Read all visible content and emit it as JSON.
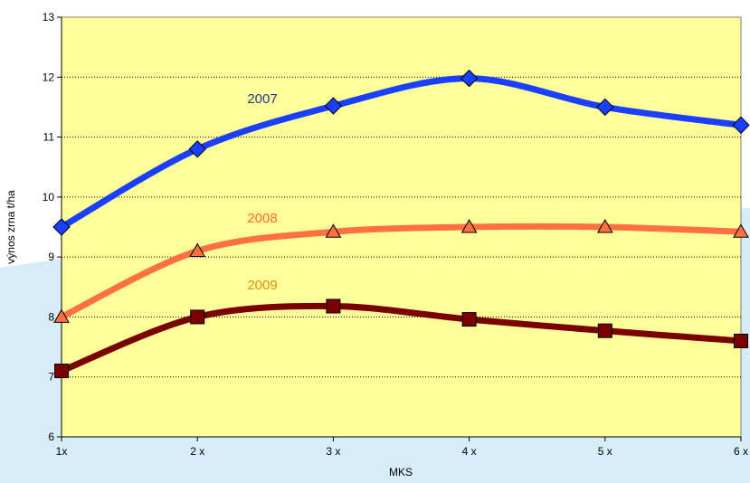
{
  "chart_data": {
    "type": "line",
    "categories": [
      "1x",
      "2 x",
      "3 x",
      "4 x",
      "5 x",
      "6 x"
    ],
    "xlabel": "MKS",
    "ylabel": "výnos zrna t/ha",
    "ylim": [
      6,
      13
    ],
    "yticks": [
      "6",
      "7",
      "8",
      "9",
      "10",
      "11",
      "12",
      "13"
    ],
    "grid": true,
    "series": [
      {
        "name": "2007",
        "values": [
          9.5,
          10.8,
          11.52,
          11.98,
          11.5,
          11.2
        ],
        "color": "#1a3fff",
        "label_color": "#1f3a8a",
        "marker": "diamond"
      },
      {
        "name": "2008",
        "values": [
          8.0,
          9.1,
          9.42,
          9.5,
          9.5,
          9.42
        ],
        "color": "#ff7043",
        "label_color": "#ff6a3d",
        "marker": "triangle"
      },
      {
        "name": "2009",
        "values": [
          7.1,
          8.0,
          8.18,
          7.96,
          7.77,
          7.6
        ],
        "color": "#7a0000",
        "label_color": "#d6901a",
        "marker": "square"
      }
    ],
    "plot_background": "#ffff99",
    "page_background": "#d6ecf7"
  }
}
